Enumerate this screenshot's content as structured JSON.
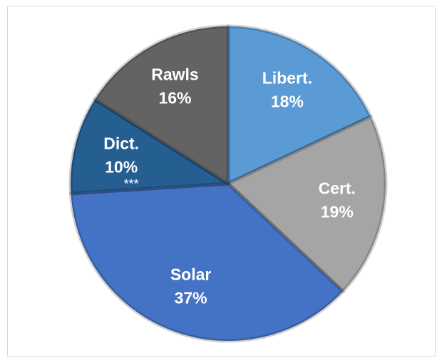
{
  "chart_data": {
    "type": "pie",
    "categories": [
      "Libert.",
      "Cert.",
      "Solar",
      "Dict.",
      "Rawls"
    ],
    "values": [
      18,
      19,
      37,
      10,
      16
    ],
    "value_labels": [
      "18%",
      "19%",
      "37%",
      "10%",
      "16%"
    ],
    "colors": [
      "#5b9bd5",
      "#a5a5a5",
      "#4472c4",
      "#255e91",
      "#636363"
    ],
    "annotation": "***"
  }
}
